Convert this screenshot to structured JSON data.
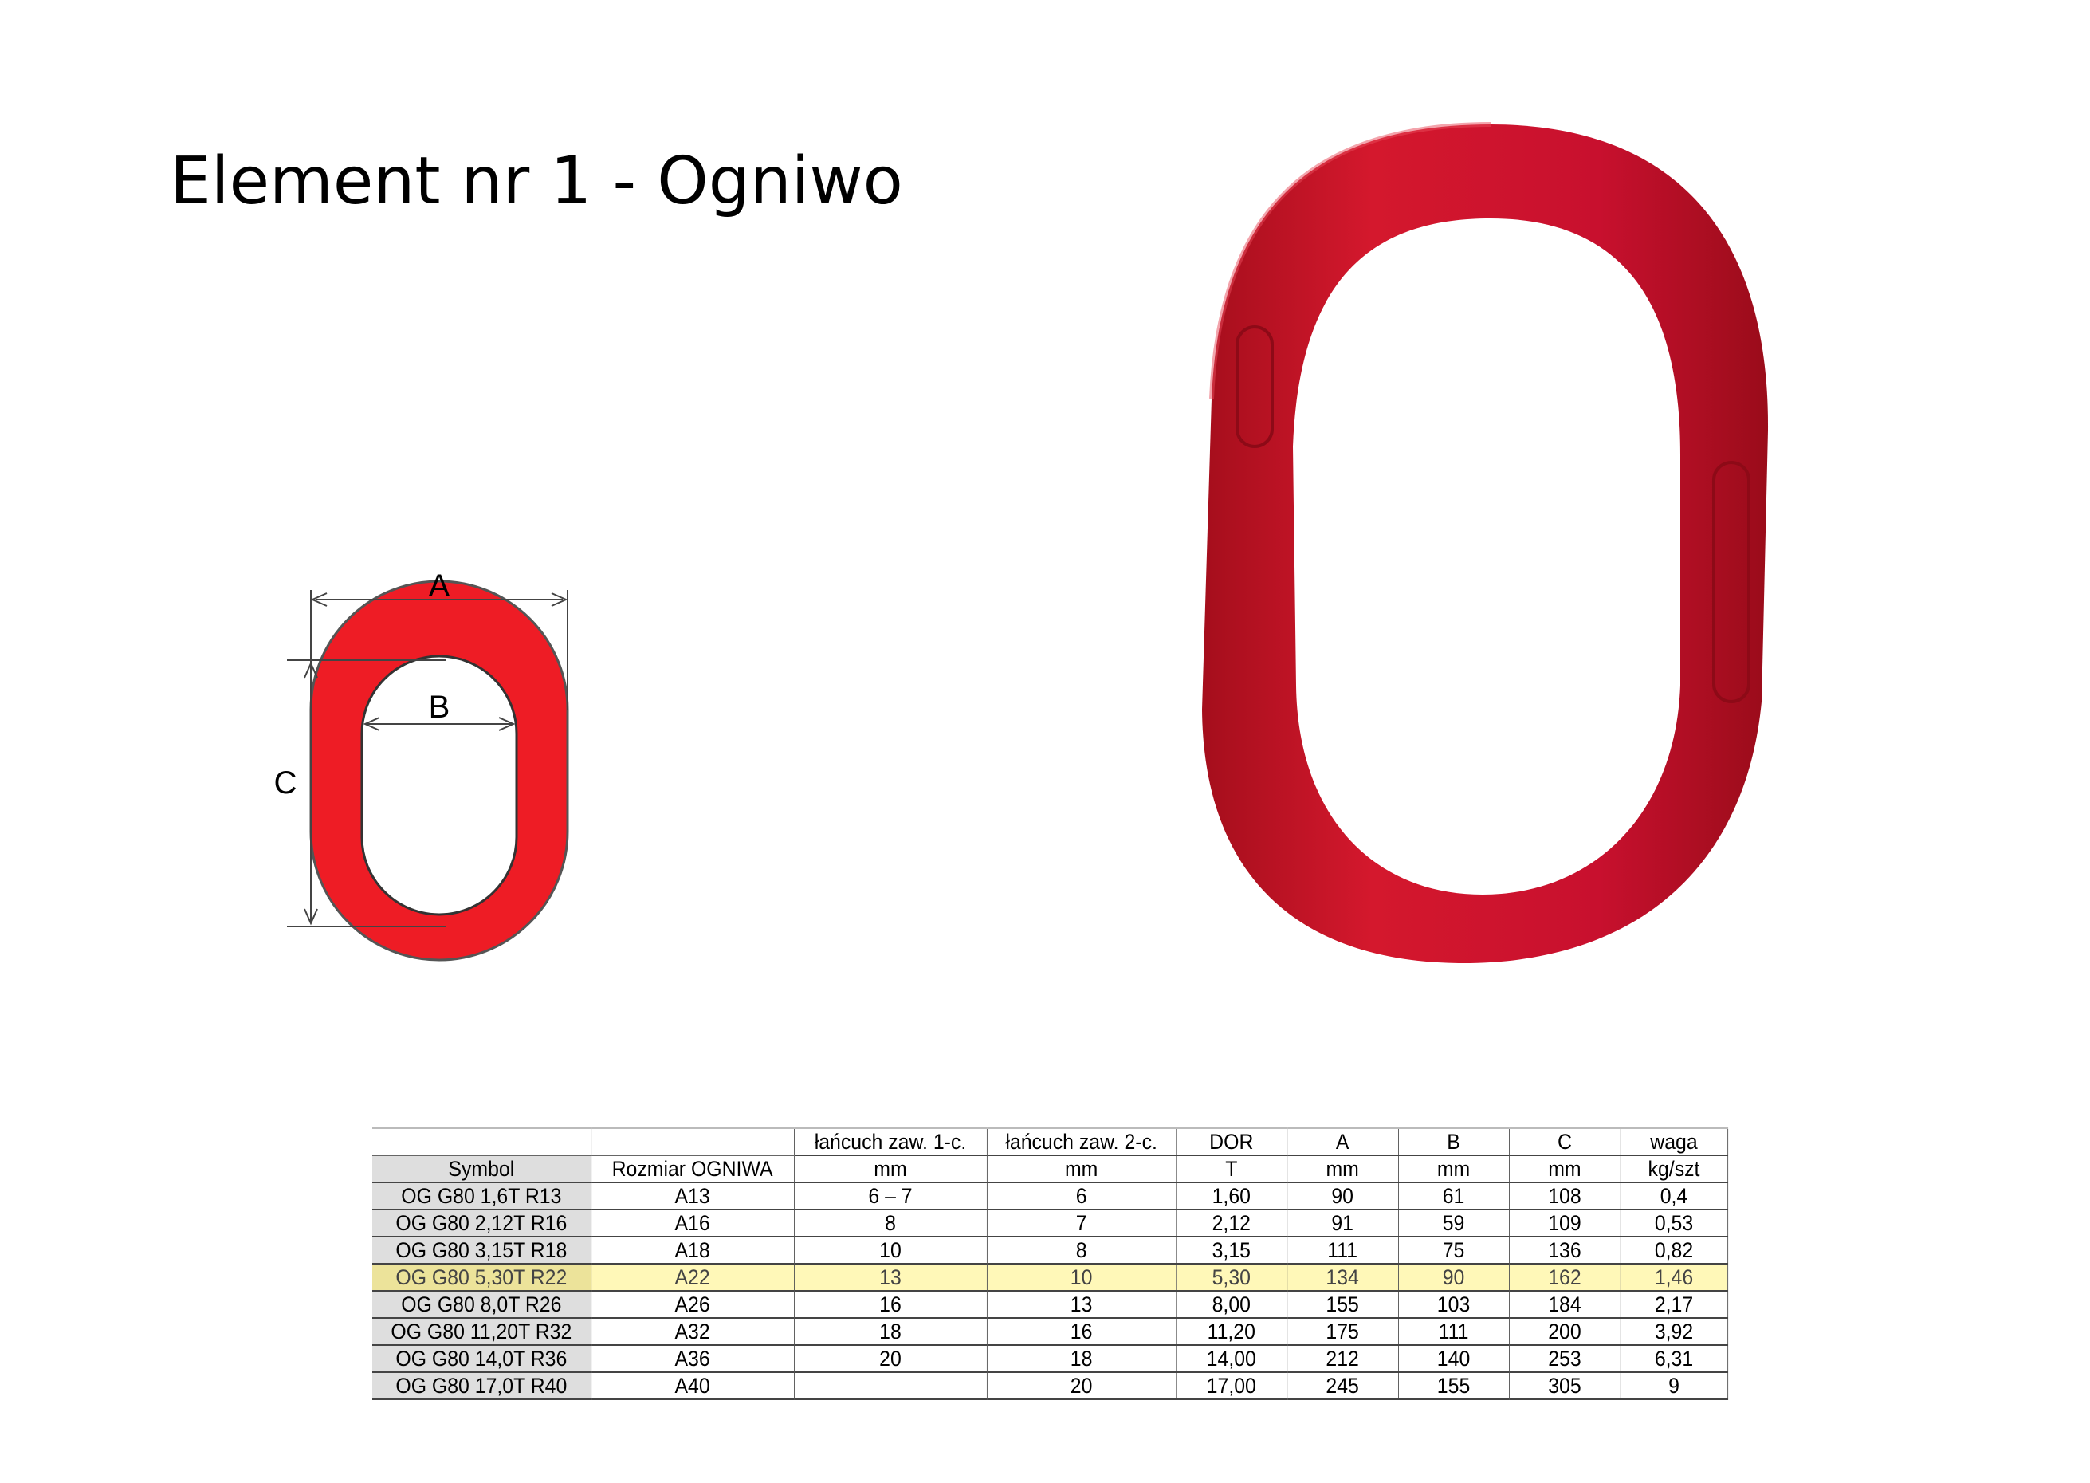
{
  "title": "Element nr 1 - Ogniwo",
  "diagram": {
    "label_a": "A",
    "label_b": "B",
    "label_c": "C",
    "ring_color": "#ee1c25"
  },
  "photo": {
    "ring_color": "#c8102e",
    "subject": "master link"
  },
  "table": {
    "header_row1": [
      "",
      "",
      "łańcuch zaw. 1-c.",
      "łańcuch zaw. 2-c.",
      "DOR",
      "A",
      "B",
      "C",
      "waga"
    ],
    "header_row2": [
      "Symbol",
      "Rozmiar OGNIWA",
      "mm",
      "mm",
      "T",
      "mm",
      "mm",
      "mm",
      "kg/szt"
    ],
    "highlight_color": "#fff8b8",
    "highlighted_row": 3,
    "rows": [
      [
        "OG G80 1,6T R13",
        "A13",
        "6 – 7",
        "6",
        "1,60",
        "90",
        "61",
        "108",
        "0,4"
      ],
      [
        "OG G80 2,12T R16",
        "A16",
        "8",
        "7",
        "2,12",
        "91",
        "59",
        "109",
        "0,53"
      ],
      [
        "OG G80 3,15T R18",
        "A18",
        "10",
        "8",
        "3,15",
        "111",
        "75",
        "136",
        "0,82"
      ],
      [
        "OG G80 5,30T R22",
        "A22",
        "13",
        "10",
        "5,30",
        "134",
        "90",
        "162",
        "1,46"
      ],
      [
        "OG G80 8,0T R26",
        "A26",
        "16",
        "13",
        "8,00",
        "155",
        "103",
        "184",
        "2,17"
      ],
      [
        "OG G80 11,20T R32",
        "A32",
        "18",
        "16",
        "11,20",
        "175",
        "111",
        "200",
        "3,92"
      ],
      [
        "OG G80 14,0T R36",
        "A36",
        "20",
        "18",
        "14,00",
        "212",
        "140",
        "253",
        "6,31"
      ],
      [
        "OG G80 17,0T R40",
        "A40",
        "",
        "20",
        "17,00",
        "245",
        "155",
        "305",
        "9"
      ]
    ]
  }
}
